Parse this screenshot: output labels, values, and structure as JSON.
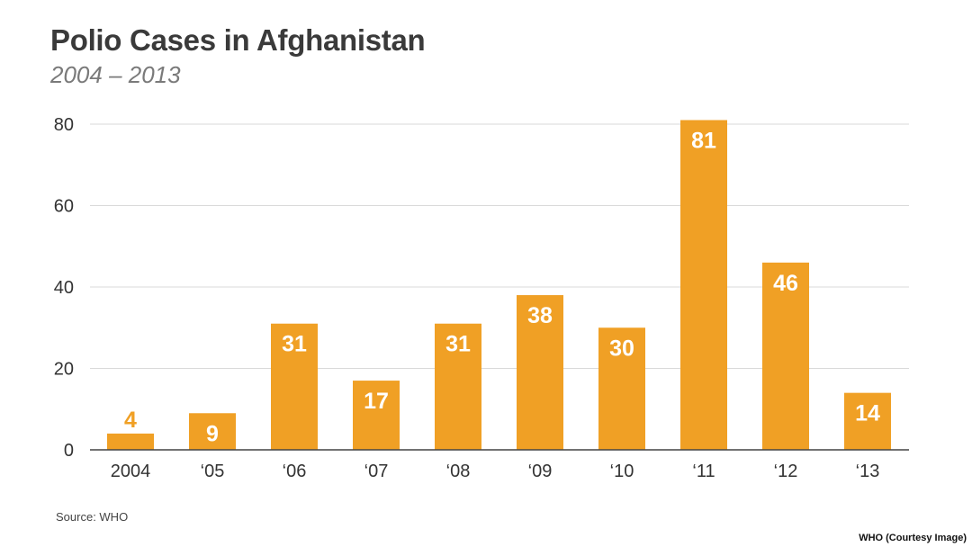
{
  "chart_data": {
    "type": "bar",
    "title": "Polio Cases in Afghanistan",
    "subtitle": "2004 – 2013",
    "xlabel": "",
    "ylabel": "",
    "categories": [
      "2004",
      "‘05",
      "‘06",
      "‘07",
      "‘08",
      "‘09",
      "‘10",
      "‘11",
      "‘12",
      "‘13"
    ],
    "values": [
      4,
      9,
      31,
      17,
      31,
      38,
      30,
      81,
      46,
      14
    ],
    "data_labels": [
      "4",
      "9",
      "31",
      "17",
      "31",
      "38",
      "30",
      "81",
      "46",
      "14"
    ],
    "ylim": [
      0,
      80
    ],
    "yticks": [
      0,
      20,
      40,
      60,
      80
    ],
    "ytick_labels": [
      "0",
      "20",
      "40",
      "60",
      "80"
    ],
    "grid": true,
    "bar_color": "#f0a025",
    "outside_label_color": "#f0a025",
    "inside_label_color": "#ffffff",
    "grid_color": "#d9d9d9",
    "axis_color": "#444444"
  },
  "footer": {
    "source": "Source: WHO",
    "credit": "WHO (Courtesy Image)"
  }
}
